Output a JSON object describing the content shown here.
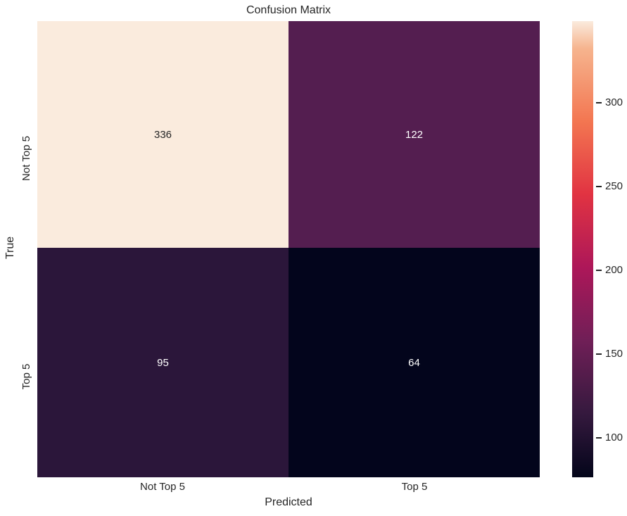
{
  "chart_data": {
    "type": "heatmap",
    "title": "Confusion Matrix",
    "xlabel": "Predicted",
    "ylabel": "True",
    "x_tick_labels": [
      "Not Top 5",
      "Top 5"
    ],
    "y_tick_labels": [
      "Not Top 5",
      "Top 5"
    ],
    "values": [
      [
        336,
        122
      ],
      [
        95,
        64
      ]
    ],
    "colormap": "rocket",
    "text_color": "#262626",
    "cells": [
      {
        "true_label": "Not Top 5",
        "predicted_label": "Not Top 5",
        "value": "336",
        "color": "#faebdd",
        "text_color": "#262626"
      },
      {
        "true_label": "Not Top 5",
        "predicted_label": "Top 5",
        "value": "122",
        "color": "#541e50",
        "text_color": "#ffffff"
      },
      {
        "true_label": "Top 5",
        "predicted_label": "Not Top 5",
        "value": "95",
        "color": "#2b163a",
        "text_color": "#ffffff"
      },
      {
        "true_label": "Top 5",
        "predicted_label": "Top 5",
        "value": "64",
        "color": "#03051c",
        "text_color": "#ffffff"
      }
    ],
    "colorbar": {
      "min": 64,
      "max": 336,
      "tick_labels": [
        "100",
        "150",
        "200",
        "250",
        "300"
      ],
      "gradient_stops": [
        {
          "color": "#03051a",
          "pos": "0%"
        },
        {
          "color": "#35193e",
          "pos": "14%"
        },
        {
          "color": "#701f57",
          "pos": "30%"
        },
        {
          "color": "#ad1759",
          "pos": "46%"
        },
        {
          "color": "#e13342",
          "pos": "62%"
        },
        {
          "color": "#f37651",
          "pos": "78%"
        },
        {
          "color": "#f6b48e",
          "pos": "94%"
        },
        {
          "color": "#faebdd",
          "pos": "100%"
        }
      ]
    }
  }
}
